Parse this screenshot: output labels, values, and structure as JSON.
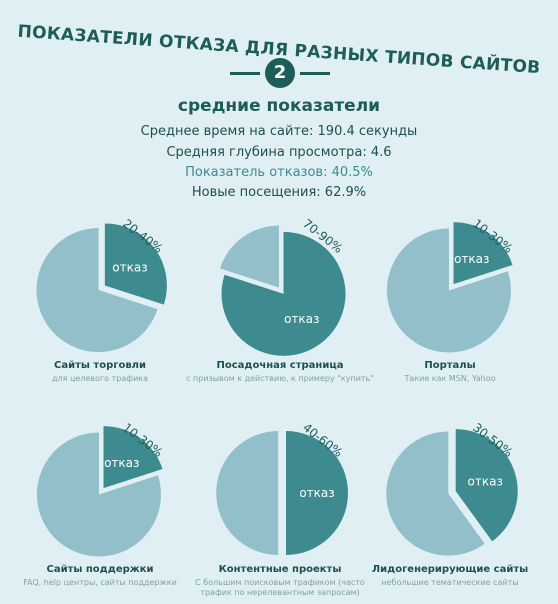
{
  "header": {
    "title": "Показатели отказа для разных типов сайтов",
    "badge": "2"
  },
  "stats": {
    "heading": "средние показатели",
    "lines": [
      "Среднее время на сайте: 190.4 секунды",
      "Средняя глубина просмотра: 4.6",
      "Показатель отказов: 40.5%",
      "Новые посещения: 62.9%"
    ]
  },
  "colors": {
    "dark": "#3d8a8f",
    "light": "#92bfc9",
    "heading": "#1e5c59"
  },
  "chart_data": [
    {
      "type": "pie",
      "title": "Сайты торговли",
      "subtitle": "для целевого трафика",
      "slice_label": "отказ",
      "range_label": "20-40%",
      "bounce_range": [
        20,
        40
      ]
    },
    {
      "type": "pie",
      "title": "Посадочная страница",
      "subtitle": "с призывом к действию, к примеру \"купить\"",
      "slice_label": "отказ",
      "range_label": "70-90%",
      "bounce_range": [
        70,
        90
      ]
    },
    {
      "type": "pie",
      "title": "Порталы",
      "subtitle": "Такие как MSN, Yahoo",
      "slice_label": "отказ",
      "range_label": "10-30%",
      "bounce_range": [
        10,
        30
      ]
    },
    {
      "type": "pie",
      "title": "Сайты поддержки",
      "subtitle": "FAQ, help центры, сайты поддержки",
      "slice_label": "отказ",
      "range_label": "10-30%",
      "bounce_range": [
        10,
        30
      ]
    },
    {
      "type": "pie",
      "title": "Контентные проекты",
      "subtitle": "С большим поисковым трафиком (часто трафик по нерелевантным запросам)",
      "slice_label": "отказ",
      "range_label": "40-60%",
      "bounce_range": [
        40,
        60
      ]
    },
    {
      "type": "pie",
      "title": "Лидогенерирующие сайты",
      "subtitle": "небольшие тематические сайты",
      "slice_label": "отказ",
      "range_label": "30-50%",
      "bounce_range": [
        30,
        50
      ]
    }
  ]
}
